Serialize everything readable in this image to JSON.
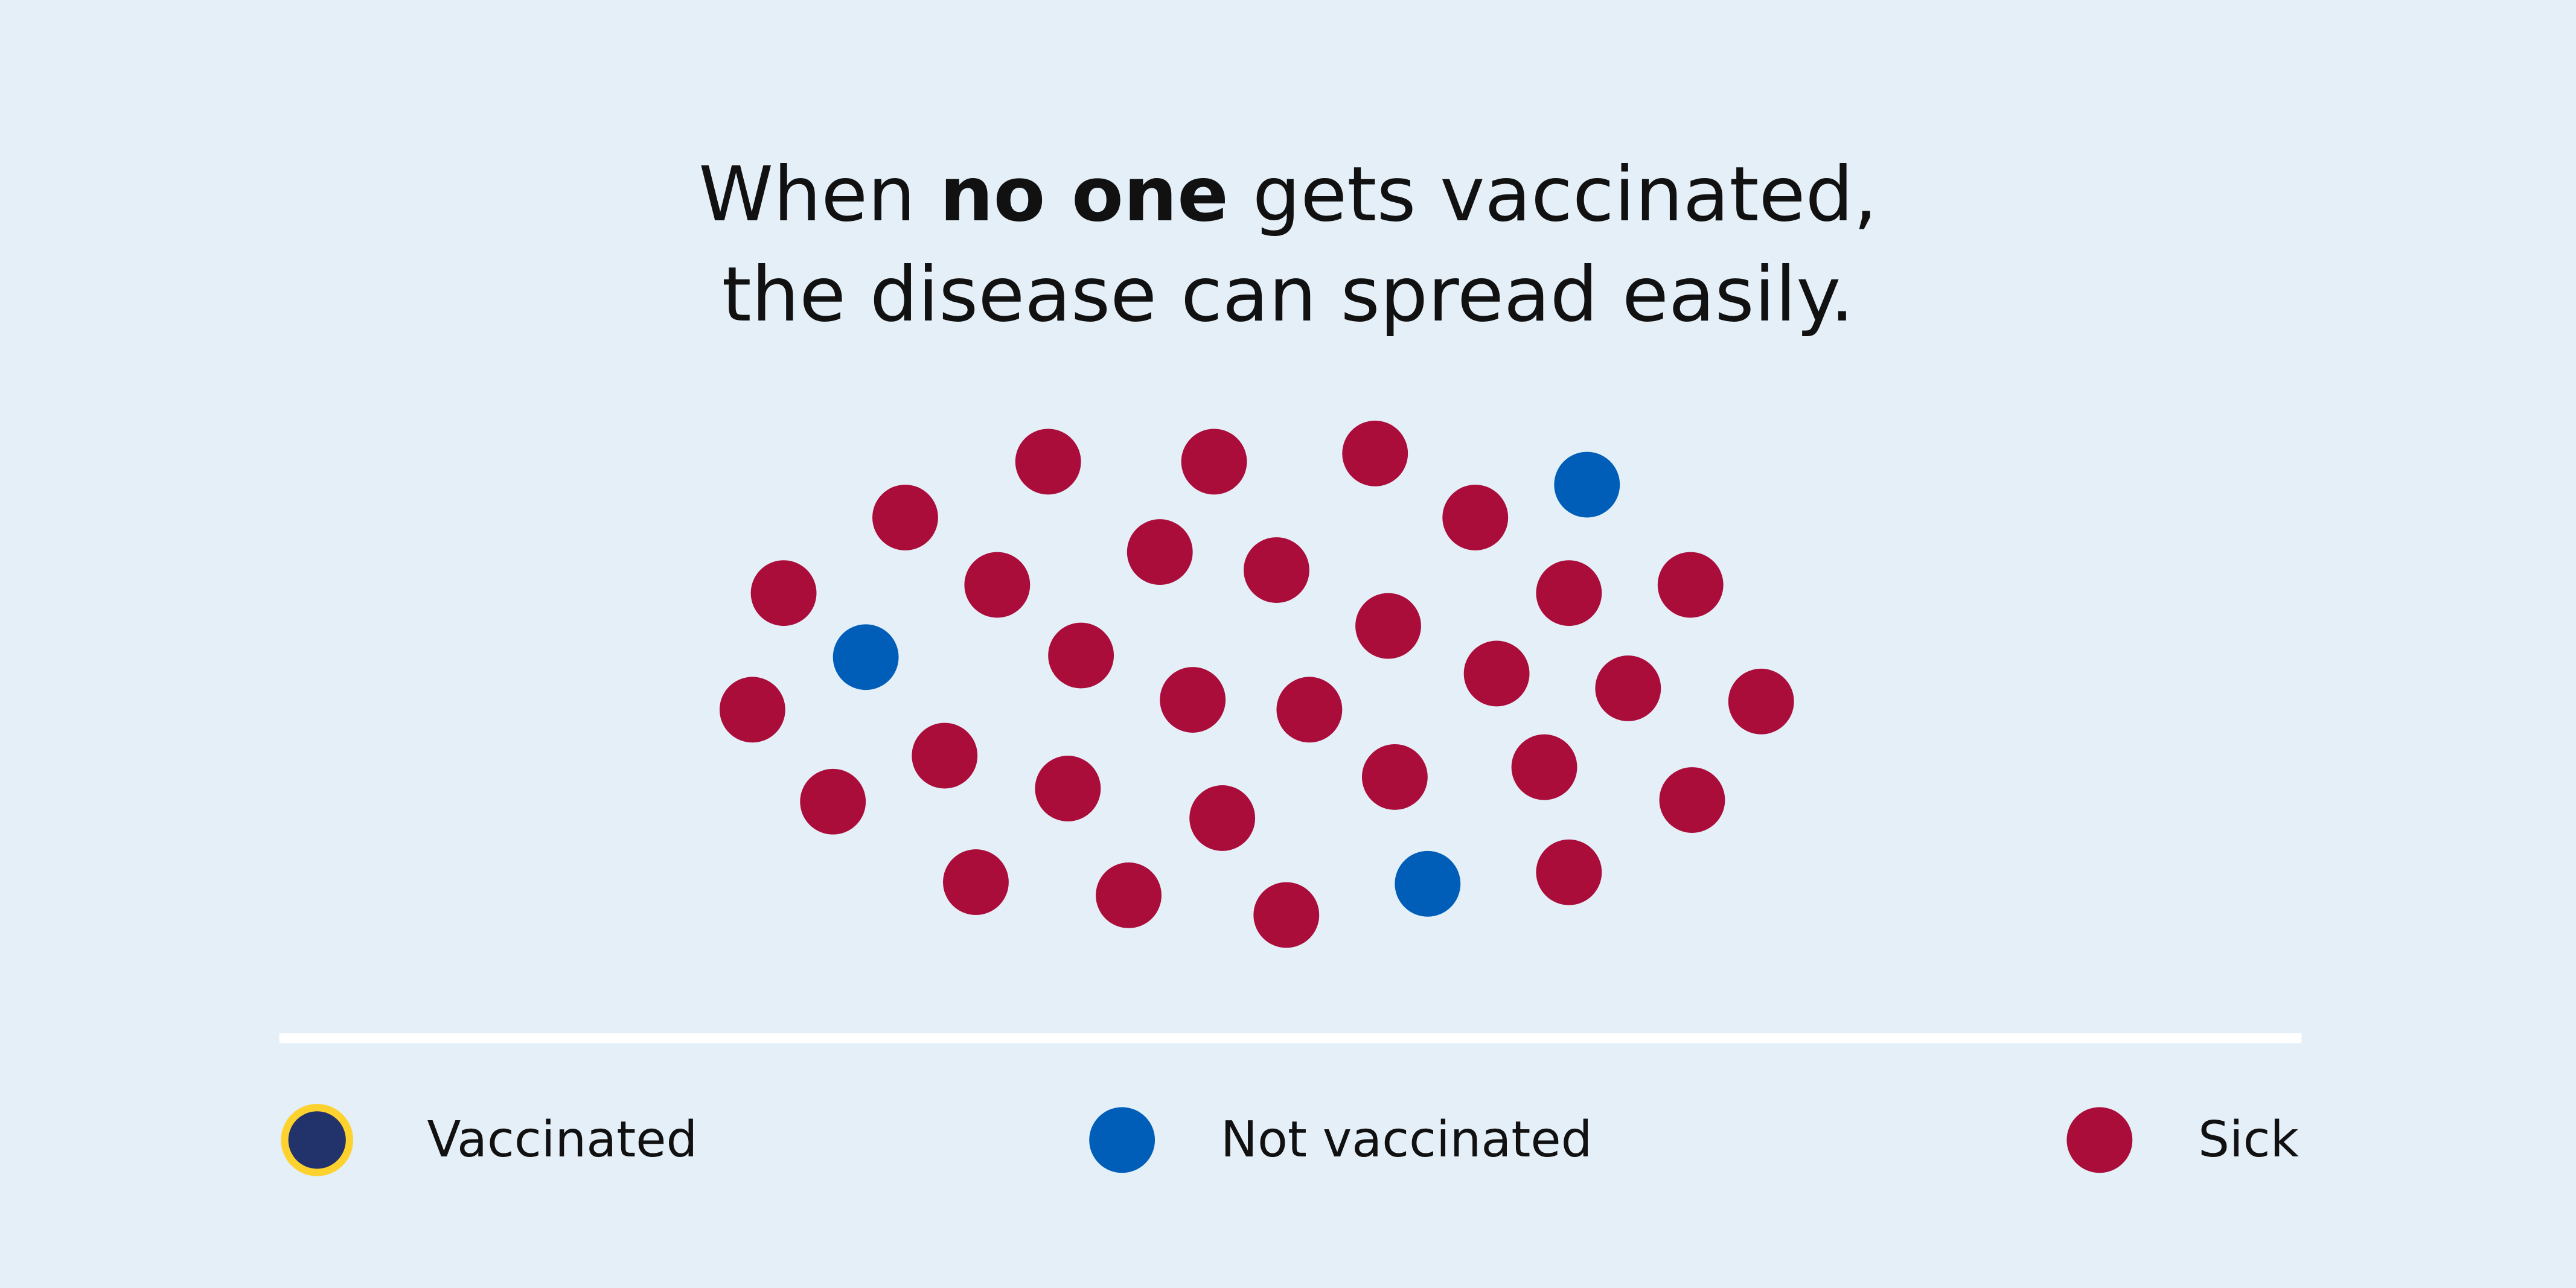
{
  "title": {
    "line1_before": "When ",
    "line1_bold": "no one",
    "line1_after": " gets vaccinated,",
    "line2": "the disease can spread easily."
  },
  "colors": {
    "background": "#e4eff8",
    "vaccinated_fill": "#22336b",
    "vaccinated_ring": "#fdd22f",
    "not_vaccinated": "#005eb8",
    "sick": "#ab0d3b",
    "divider": "#ffffff"
  },
  "population": [
    "sick",
    "sick",
    "sick",
    "not_vaccinated",
    "sick",
    "sick",
    "sick",
    "sick",
    "sick",
    "sick",
    "sick",
    "sick",
    "sick",
    "not_vaccinated",
    "sick",
    "sick",
    "sick",
    "sick",
    "sick",
    "sick",
    "sick",
    "sick",
    "sick",
    "sick",
    "sick",
    "sick",
    "sick",
    "sick",
    "sick",
    "sick",
    "sick",
    "not_vaccinated",
    "sick"
  ],
  "legend": {
    "vaccinated": "Vaccinated",
    "not_vaccinated": "Not vaccinated",
    "sick": "Sick"
  }
}
